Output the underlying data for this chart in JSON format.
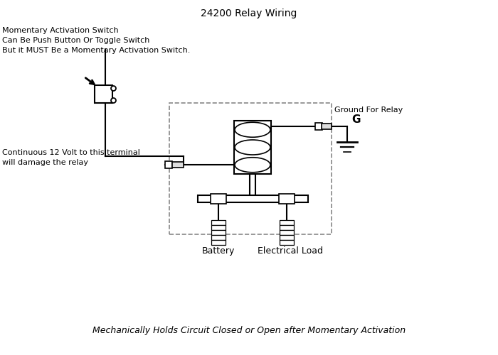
{
  "title": "24200 Relay Wiring",
  "subtitle": "Mechanically Holds Circuit Closed or Open after Momentary Activation",
  "label_switch": "Momentary Activation Switch\nCan Be Push Button Or Toggle Switch\nBut it MUST Be a Momentary Activation Switch.",
  "label_terminal": "Continuous 12 Volt to this terminal\nwill damage the relay",
  "label_ground": "Ground For Relay",
  "label_battery": "Battery",
  "label_load": "Electrical Load",
  "label_G": "G",
  "bg_color": "#ffffff",
  "line_color": "#000000",
  "dashed_color": "#888888",
  "title_fontsize": 10,
  "label_fontsize": 8,
  "subtitle_fontsize": 9,
  "figsize": [
    7.0,
    5.0
  ],
  "dpi": 100
}
